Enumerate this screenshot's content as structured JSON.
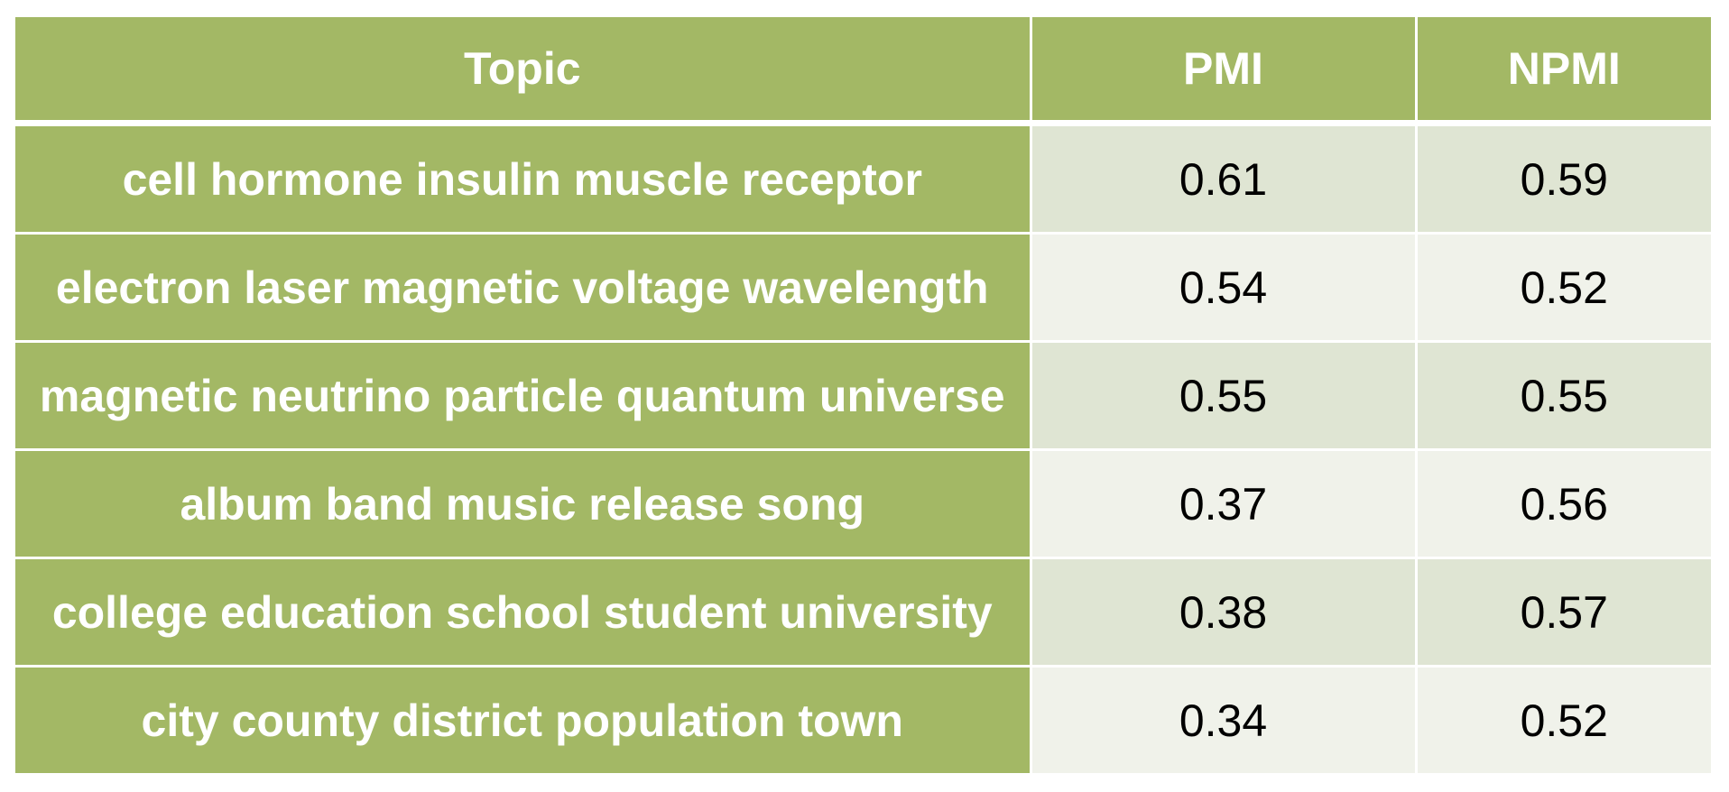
{
  "table": {
    "headers": [
      "Topic",
      "PMI",
      "NPMI"
    ],
    "rows": [
      {
        "topic": "cell hormone insulin muscle receptor",
        "pmi": "0.61",
        "npmi": "0.59"
      },
      {
        "topic": "electron laser magnetic voltage wavelength",
        "pmi": "0.54",
        "npmi": "0.52"
      },
      {
        "topic": "magnetic neutrino particle quantum universe",
        "pmi": "0.55",
        "npmi": "0.55"
      },
      {
        "topic": "album band music release song",
        "pmi": "0.37",
        "npmi": "0.56"
      },
      {
        "topic": "college education school student university",
        "pmi": "0.38",
        "npmi": "0.57"
      },
      {
        "topic": "city county district population town",
        "pmi": "0.34",
        "npmi": "0.52"
      }
    ]
  },
  "colors": {
    "header_bg": "#a3b865",
    "topic_bg": "#a3b865",
    "row_odd_bg": "#dfe5d3",
    "row_even_bg": "#f0f2ea",
    "header_text": "#ffffff",
    "value_text": "#000000"
  }
}
